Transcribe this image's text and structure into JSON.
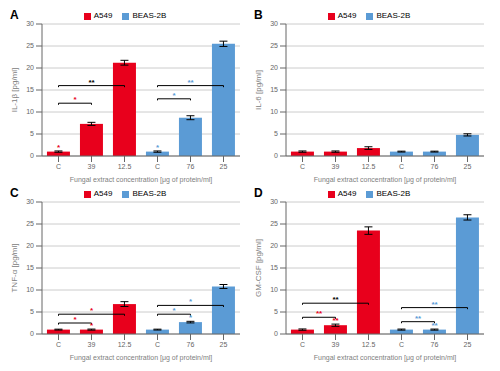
{
  "chart_data": [
    {
      "type": "bar",
      "title": "A",
      "ylabel": "IL-1β [pg/ml]",
      "xlabel": "Fungal extract concentration [μg of protein/ml]",
      "categories": [
        "C",
        "39",
        "12.5",
        "C",
        "76",
        "25"
      ],
      "series": [
        {
          "name": "A549",
          "color": "#e8001c",
          "values": [
            1.0,
            7.3,
            21.2,
            null,
            null,
            null
          ],
          "errors": [
            0.15,
            0.35,
            0.55,
            null,
            null,
            null
          ]
        },
        {
          "name": "BEAS-2B",
          "color": "#5b9bd5",
          "values": [
            null,
            null,
            null,
            1.0,
            8.7,
            25.5
          ],
          "errors": [
            null,
            null,
            null,
            0.15,
            0.45,
            0.6
          ]
        }
      ],
      "ylim": [
        0,
        30
      ],
      "yticks": [
        0,
        5,
        10,
        15,
        20,
        25,
        30
      ],
      "grid": true,
      "legend": "top",
      "annotations": [
        {
          "text": "*",
          "at": 0,
          "color": "#e8001c"
        },
        {
          "text": "*",
          "from": 0,
          "to": 1,
          "y": 12.0,
          "color": "#e8001c"
        },
        {
          "text": "**",
          "from": 0,
          "to": 2,
          "y": 16.0,
          "color": "#000000"
        },
        {
          "text": "*",
          "at": 3,
          "color": "#5b9bd5"
        },
        {
          "text": "*",
          "from": 3,
          "to": 4,
          "y": 13.0,
          "color": "#5b9bd5"
        },
        {
          "text": "**",
          "from": 3,
          "to": 5,
          "y": 16.0,
          "color": "#5b9bd5"
        }
      ]
    },
    {
      "type": "bar",
      "title": "B",
      "ylabel": "IL-6 [pg/ml]",
      "xlabel": "Fungal extract concentration [μg of protein/ml]",
      "categories": [
        "C",
        "39",
        "12.5",
        "C",
        "76",
        "25"
      ],
      "series": [
        {
          "name": "A549",
          "color": "#e8001c",
          "values": [
            1.0,
            1.0,
            1.8,
            null,
            null,
            null
          ],
          "errors": [
            0.15,
            0.15,
            0.3,
            null,
            null,
            null
          ]
        },
        {
          "name": "BEAS-2B",
          "color": "#5b9bd5",
          "values": [
            null,
            null,
            null,
            1.0,
            1.0,
            4.8
          ],
          "errors": [
            null,
            null,
            null,
            0.1,
            0.1,
            0.25
          ]
        }
      ],
      "ylim": [
        0,
        30
      ],
      "yticks": [
        0,
        5,
        10,
        15,
        20,
        25,
        30
      ],
      "grid": true,
      "legend": "top"
    },
    {
      "type": "bar",
      "title": "C",
      "ylabel": "TNF-α [pg/ml]",
      "xlabel": "Fungal extract concentration [μg of protein/ml]",
      "categories": [
        "C",
        "39",
        "12.5",
        "C",
        "76",
        "25"
      ],
      "series": [
        {
          "name": "A549",
          "color": "#e8001c",
          "values": [
            1.0,
            1.0,
            6.8,
            null,
            null,
            null
          ],
          "errors": [
            0.1,
            0.12,
            0.55,
            null,
            null,
            null
          ]
        },
        {
          "name": "BEAS-2B",
          "color": "#5b9bd5",
          "values": [
            null,
            null,
            null,
            1.0,
            2.7,
            10.8
          ],
          "errors": [
            null,
            null,
            null,
            0.1,
            0.18,
            0.45
          ]
        }
      ],
      "ylim": [
        0,
        30
      ],
      "yticks": [
        0,
        5,
        10,
        15,
        20,
        25,
        30
      ],
      "grid": true,
      "legend": "top",
      "annotations": [
        {
          "text": "*",
          "at": 1,
          "color": "#e8001c"
        },
        {
          "text": "*",
          "from": 0,
          "to": 1,
          "y": 2.5,
          "color": "#e8001c"
        },
        {
          "text": "*",
          "from": 0,
          "to": 2,
          "y": 4.5,
          "color": "#e8001c"
        },
        {
          "text": "*",
          "at": 4,
          "color": "#5b9bd5"
        },
        {
          "text": "*",
          "from": 3,
          "to": 4,
          "y": 4.5,
          "color": "#5b9bd5"
        },
        {
          "text": "*",
          "from": 3,
          "to": 5,
          "y": 6.5,
          "color": "#5b9bd5"
        }
      ]
    },
    {
      "type": "bar",
      "title": "D",
      "ylabel": "GM-CSF [pg/ml]",
      "xlabel": "Fungal extract concentration [μg of protein/ml]",
      "categories": [
        "C",
        "39",
        "12.5",
        "C",
        "76",
        "25"
      ],
      "series": [
        {
          "name": "A549",
          "color": "#e8001c",
          "values": [
            1.0,
            2.0,
            23.5,
            null,
            null,
            null
          ],
          "errors": [
            0.15,
            0.25,
            0.85,
            null,
            null,
            null
          ]
        },
        {
          "name": "BEAS-2B",
          "color": "#5b9bd5",
          "values": [
            null,
            null,
            null,
            1.0,
            1.0,
            26.5
          ],
          "errors": [
            null,
            null,
            null,
            0.12,
            0.12,
            0.6
          ]
        }
      ],
      "ylim": [
        0,
        30
      ],
      "yticks": [
        0,
        5,
        10,
        15,
        20,
        25,
        30
      ],
      "grid": true,
      "legend": "top",
      "annotations": [
        {
          "text": "**",
          "at": 1,
          "color": "#e8001c"
        },
        {
          "text": "**",
          "from": 0,
          "to": 2,
          "y": 7.0,
          "color": "#000000"
        },
        {
          "text": "**",
          "from": 0,
          "to": 1,
          "y": 3.8,
          "color": "#e8001c"
        },
        {
          "text": "**",
          "at": 4,
          "color": "#5b9bd5"
        },
        {
          "text": "**",
          "from": 3,
          "to": 5,
          "y": 6.0,
          "color": "#5b9bd5"
        },
        {
          "text": "**",
          "from": 3,
          "to": 4,
          "y": 2.8,
          "color": "#5b9bd5"
        }
      ]
    }
  ]
}
